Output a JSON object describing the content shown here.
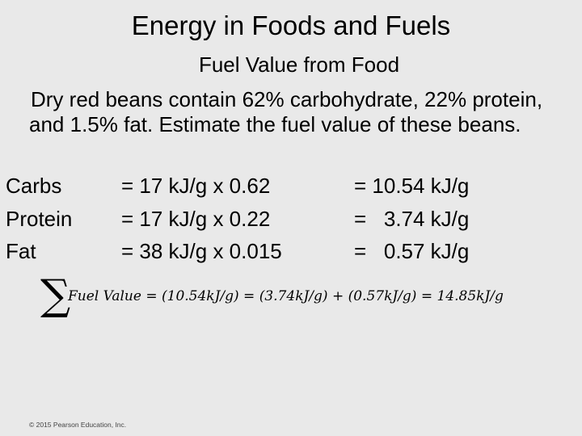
{
  "slide": {
    "title": "Energy in Foods and Fuels",
    "subtitle": "Fuel Value from Food",
    "problem": "Dry red beans contain 62% carbohydrate, 22% protein, and 1.5% fat. Estimate the fuel value of these beans.",
    "rows": [
      {
        "label": "Carbs",
        "calc": "= 17 kJ/g x 0.62",
        "result": "= 10.54 kJ/g"
      },
      {
        "label": "Protein",
        "calc": "= 17 kJ/g x 0.22",
        "result": "=   3.74 kJ/g"
      },
      {
        "label": "Fat",
        "calc": "= 38 kJ/g x 0.015",
        "result": "=   0.57 kJ/g"
      }
    ],
    "equation": {
      "sigma": "∑",
      "expression": "Fuel Value = (10.54kJ/g) = (3.74kJ/g) + (0.57kJ/g) = 14.85kJ/g"
    },
    "copyright": "© 2015 Pearson Education, Inc."
  }
}
